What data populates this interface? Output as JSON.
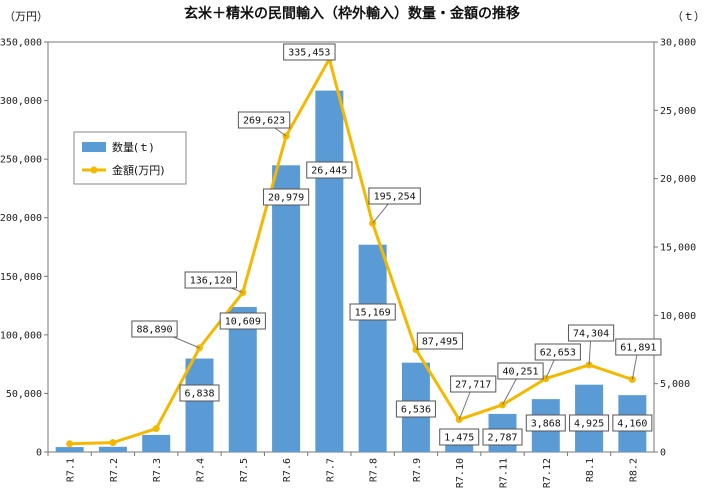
{
  "chart_data": {
    "type": "bar+line",
    "title": "玄米＋精米の民間輸入（枠外輸入）数量・金額の推移",
    "left_unit": "（万円）",
    "right_unit": "（ｔ）",
    "categories": [
      "R7.1",
      "R7.2",
      "R7.3",
      "R7.4",
      "R7.5",
      "R7.6",
      "R7.7",
      "R7.8",
      "R7.9",
      "R7.10",
      "R7.11",
      "R7.12",
      "R8.1",
      "R8.2"
    ],
    "series": [
      {
        "name": "数量(ｔ)",
        "type": "bar",
        "axis": "right",
        "color": "#5b9bd5",
        "values": [
          360,
          380,
          1250,
          6838,
          10609,
          20979,
          26445,
          15169,
          6536,
          1475,
          2787,
          3868,
          4925,
          4160
        ],
        "labels": [
          "",
          "",
          "",
          "6,838",
          "10,609",
          "20,979",
          "26,445",
          "15,169",
          "6,536",
          "1,475",
          "2,787",
          "3,868",
          "4,925",
          "4,160"
        ]
      },
      {
        "name": "金額(万円)",
        "type": "line",
        "axis": "left",
        "color": "#f5b800",
        "values": [
          7000,
          8000,
          20000,
          88890,
          136120,
          269623,
          335453,
          195254,
          87495,
          27717,
          40251,
          62653,
          74304,
          61891
        ],
        "labels": [
          "",
          "",
          "",
          "88,890",
          "136,120",
          "269,623",
          "335,453",
          "195,254",
          "87,495",
          "27,717",
          "40,251",
          "62,653",
          "74,304",
          "61,891"
        ]
      }
    ],
    "y_left": {
      "min": 0,
      "max": 350000,
      "ticks": [
        "0",
        "50,000",
        "100,000",
        "150,000",
        "200,000",
        "250,000",
        "300,000",
        "350,000"
      ]
    },
    "y_right": {
      "min": 0,
      "max": 30000,
      "ticks": [
        "0",
        "5,000",
        "10,000",
        "15,000",
        "20,000",
        "25,000",
        "30,000"
      ]
    },
    "legend": {
      "position": "left",
      "items": [
        "数量(ｔ)",
        "金額(万円)"
      ]
    },
    "grid": false
  }
}
